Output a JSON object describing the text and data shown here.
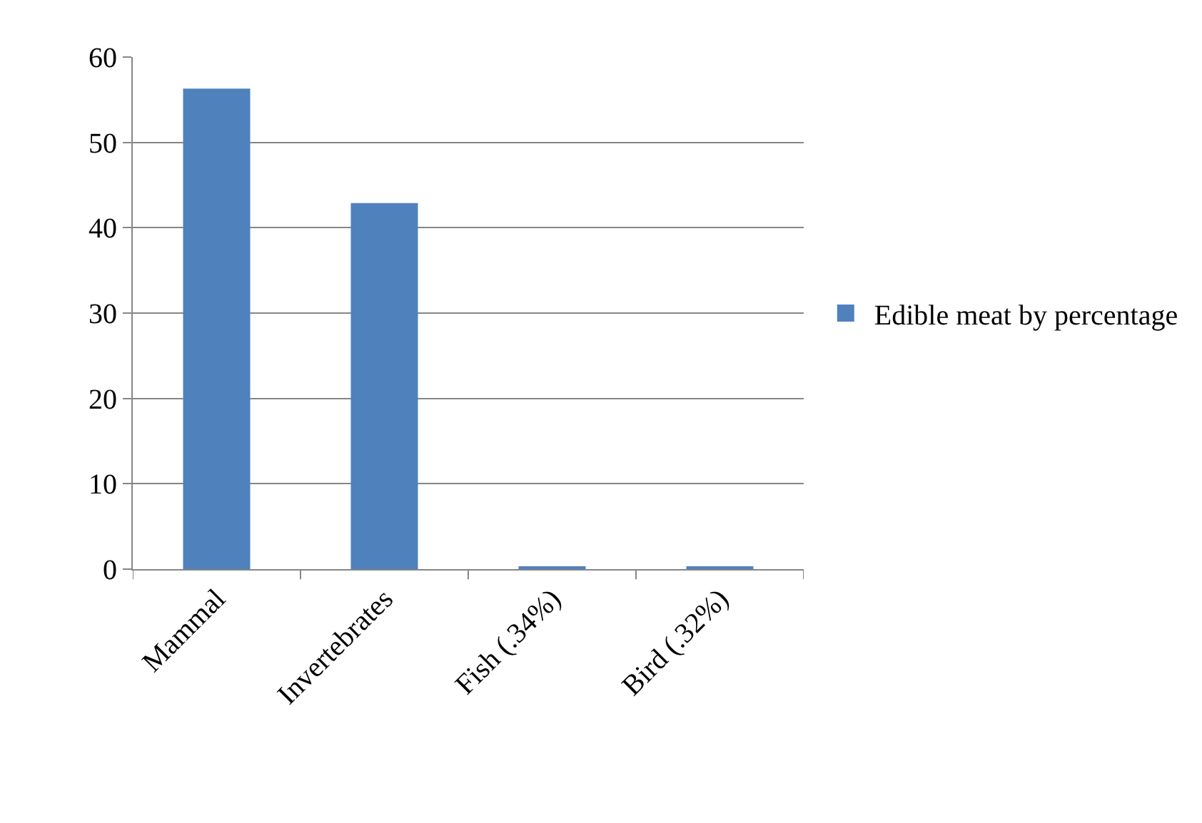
{
  "chart_data": {
    "type": "bar",
    "categories": [
      "Mammal",
      "Invertebrates",
      "Fish (.34%)",
      "Bird (.32%)"
    ],
    "series": [
      {
        "name": "Edible meat by percentage",
        "color": "#4f81bd",
        "values": [
          56.3,
          42.9,
          0.34,
          0.32
        ]
      }
    ],
    "ylim": [
      0,
      60
    ],
    "yticks": [
      0,
      10,
      20,
      30,
      40,
      50,
      60
    ],
    "grid": "y",
    "legend": "right"
  }
}
